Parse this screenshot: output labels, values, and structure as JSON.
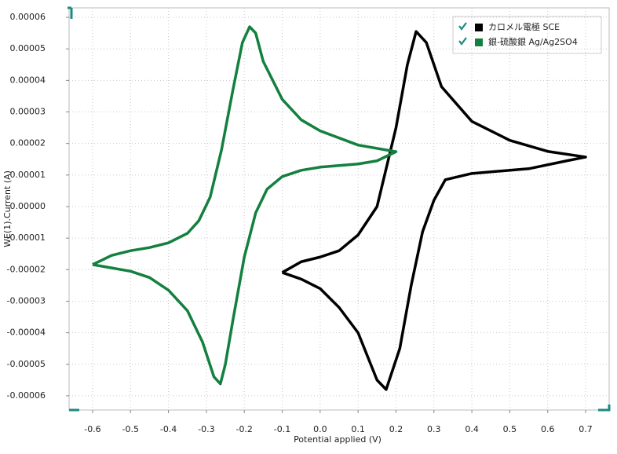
{
  "chart_data": {
    "type": "line",
    "xlabel": "Potential applied (V)",
    "ylabel": "WE(1).Current (A)",
    "xlim": [
      -0.662,
      0.762
    ],
    "ylim": [
      -6.45e-05,
      6.3e-05
    ],
    "xticks": [
      -0.6,
      -0.5,
      -0.4,
      -0.3,
      -0.2,
      -0.1,
      {
        "value": 0,
        "label": "0.0"
      },
      0.1,
      0.2,
      0.3,
      0.4,
      0.5,
      0.6,
      0.7
    ],
    "yticks": [
      -6e-05,
      -5e-05,
      -4e-05,
      -3e-05,
      -2e-05,
      -1e-05,
      {
        "value": 0,
        "label": "0.00000"
      },
      1e-05,
      2e-05,
      3e-05,
      4e-05,
      5e-05,
      6e-05
    ],
    "grid": true,
    "legend": "upper right",
    "series": [
      {
        "name": "カロメル電極 SCE",
        "color": "#000000",
        "x": [
          -0.1,
          -0.05,
          0.0,
          0.05,
          0.1,
          0.15,
          0.2,
          0.23,
          0.253,
          0.28,
          0.32,
          0.4,
          0.5,
          0.6,
          0.7,
          0.65,
          0.55,
          0.4,
          0.33,
          0.3,
          0.27,
          0.24,
          0.21,
          0.174,
          0.15,
          0.1,
          0.05,
          0.0,
          -0.05,
          -0.1
        ],
        "values": [
          -2.09e-05,
          -1.75e-05,
          -1.6e-05,
          -1.4e-05,
          -9e-06,
          0.0,
          2.5e-05,
          4.5e-05,
          5.55e-05,
          5.2e-05,
          3.8e-05,
          2.7e-05,
          2.1e-05,
          1.75e-05,
          1.57e-05,
          1.45e-05,
          1.2e-05,
          1.05e-05,
          8.5e-06,
          2e-06,
          -8e-06,
          -2.5e-05,
          -4.5e-05,
          -5.8e-05,
          -5.5e-05,
          -4e-05,
          -3.2e-05,
          -2.6e-05,
          -2.3e-05,
          -2.09e-05
        ]
      },
      {
        "name": "銀-硫酸銀 Ag/Ag2SO4",
        "color": "#13803f",
        "x": [
          -0.6,
          -0.55,
          -0.5,
          -0.45,
          -0.4,
          -0.35,
          -0.32,
          -0.29,
          -0.26,
          -0.23,
          -0.205,
          -0.186,
          -0.17,
          -0.15,
          -0.1,
          -0.05,
          0.0,
          0.1,
          0.2,
          0.15,
          0.1,
          0.0,
          -0.05,
          -0.1,
          -0.14,
          -0.17,
          -0.2,
          -0.23,
          -0.25,
          -0.263,
          -0.28,
          -0.31,
          -0.35,
          -0.4,
          -0.45,
          -0.5,
          -0.6
        ],
        "values": [
          -1.84e-05,
          -1.55e-05,
          -1.4e-05,
          -1.3e-05,
          -1.15e-05,
          -8.5e-06,
          -4.5e-06,
          3e-06,
          1.8e-05,
          3.7e-05,
          5.2e-05,
          5.7e-05,
          5.5e-05,
          4.6e-05,
          3.4e-05,
          2.75e-05,
          2.4e-05,
          1.95e-05,
          1.74e-05,
          1.45e-05,
          1.35e-05,
          1.25e-05,
          1.15e-05,
          9.5e-06,
          5.5e-06,
          -2e-06,
          -1.6e-05,
          -3.6e-05,
          -5e-05,
          -5.62e-05,
          -5.4e-05,
          -4.3e-05,
          -3.3e-05,
          -2.65e-05,
          -2.25e-05,
          -2.05e-05,
          -1.84e-05
        ]
      }
    ]
  }
}
